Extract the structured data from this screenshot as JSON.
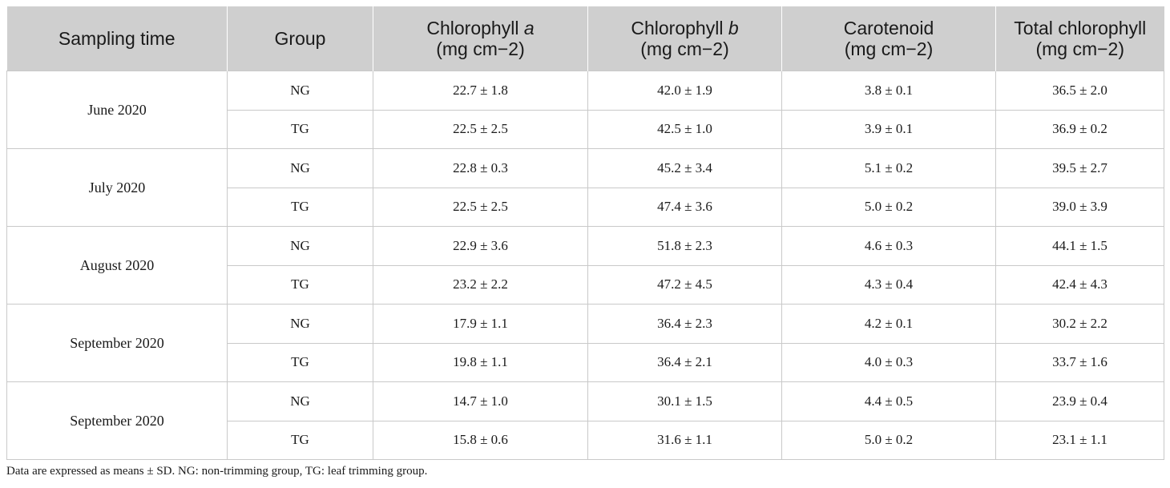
{
  "table": {
    "headers": [
      {
        "line1": "Sampling time",
        "italic": "",
        "unit": ""
      },
      {
        "line1": "Group",
        "italic": "",
        "unit": ""
      },
      {
        "line1": "Chlorophyll ",
        "italic": "a",
        "unit": "(mg cm−2)"
      },
      {
        "line1": "Chlorophyll ",
        "italic": "b",
        "unit": "(mg cm−2)"
      },
      {
        "line1": "Carotenoid",
        "italic": "",
        "unit": "(mg cm−2)"
      },
      {
        "line1": "Total chlorophyll",
        "italic": "",
        "unit": "(mg cm−2)"
      }
    ],
    "groups": [
      {
        "time": "June 2020",
        "rows": [
          {
            "group": "NG",
            "chl_a": "22.7 ± 1.8",
            "chl_b": "42.0 ± 1.9",
            "carotenoid": "3.8 ± 0.1",
            "total": "36.5 ± 2.0"
          },
          {
            "group": "TG",
            "chl_a": "22.5 ± 2.5",
            "chl_b": "42.5 ± 1.0",
            "carotenoid": "3.9 ± 0.1",
            "total": "36.9 ± 0.2"
          }
        ]
      },
      {
        "time": "July 2020",
        "rows": [
          {
            "group": "NG",
            "chl_a": "22.8 ± 0.3",
            "chl_b": "45.2 ± 3.4",
            "carotenoid": "5.1 ± 0.2",
            "total": "39.5 ± 2.7"
          },
          {
            "group": "TG",
            "chl_a": "22.5 ± 2.5",
            "chl_b": "47.4 ± 3.6",
            "carotenoid": "5.0 ± 0.2",
            "total": "39.0 ± 3.9"
          }
        ]
      },
      {
        "time": "August 2020",
        "rows": [
          {
            "group": "NG",
            "chl_a": "22.9 ± 3.6",
            "chl_b": "51.8 ± 2.3",
            "carotenoid": "4.6 ± 0.3",
            "total": "44.1 ± 1.5"
          },
          {
            "group": "TG",
            "chl_a": "23.2 ± 2.2",
            "chl_b": "47.2 ± 4.5",
            "carotenoid": "4.3 ± 0.4",
            "total": "42.4 ± 4.3"
          }
        ]
      },
      {
        "time": "September 2020",
        "rows": [
          {
            "group": "NG",
            "chl_a": "17.9 ± 1.1",
            "chl_b": "36.4 ± 2.3",
            "carotenoid": "4.2 ± 0.1",
            "total": "30.2 ± 2.2"
          },
          {
            "group": "TG",
            "chl_a": "19.8 ± 1.1",
            "chl_b": "36.4 ± 2.1",
            "carotenoid": "4.0 ± 0.3",
            "total": "33.7 ± 1.6"
          }
        ]
      },
      {
        "time": "September 2020",
        "rows": [
          {
            "group": "NG",
            "chl_a": "14.7 ± 1.0",
            "chl_b": "30.1 ± 1.5",
            "carotenoid": "4.4 ± 0.5",
            "total": "23.9 ± 0.4"
          },
          {
            "group": "TG",
            "chl_a": "15.8 ± 0.6",
            "chl_b": "31.6 ± 1.1",
            "carotenoid": "5.0 ± 0.2",
            "total": "23.1 ± 1.1"
          }
        ]
      }
    ]
  },
  "footnote": "Data are expressed as means ± SD. NG: non-trimming group, TG: leaf trimming group."
}
